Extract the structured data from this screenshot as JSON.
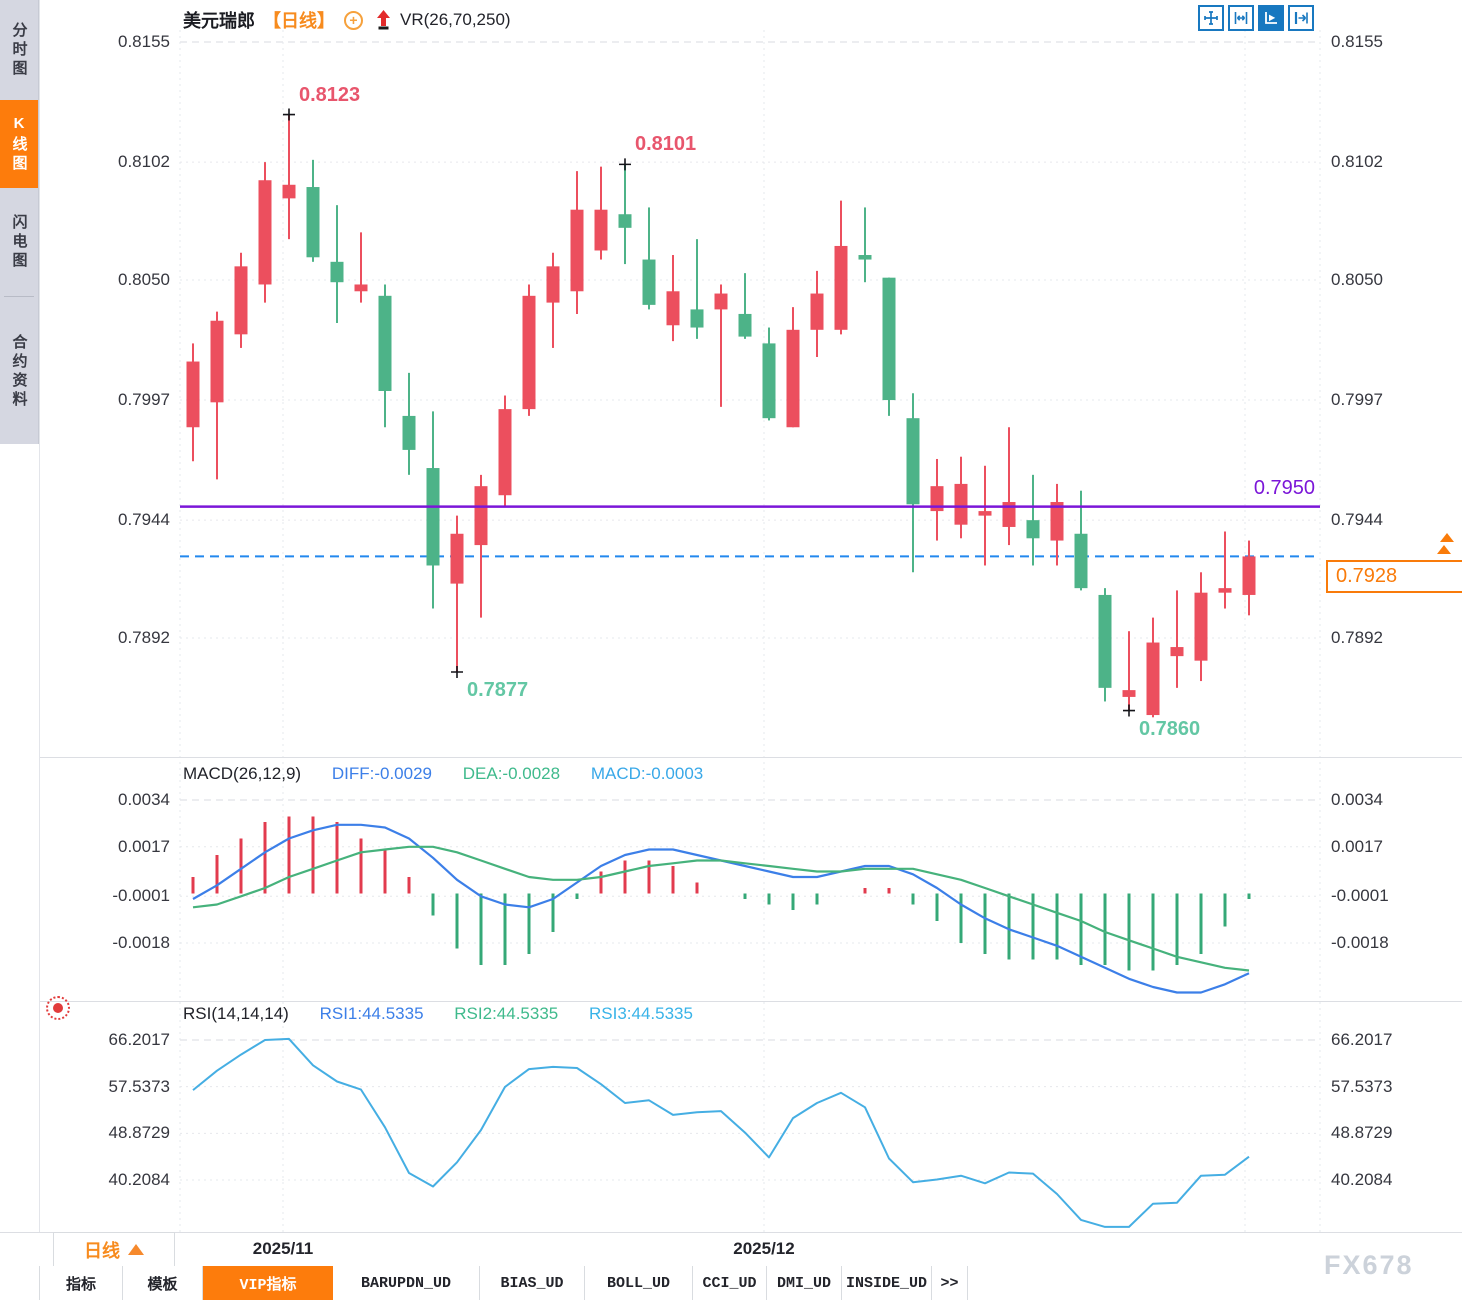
{
  "app": {
    "watermark": "FX678"
  },
  "colors": {
    "accent_orange": "#fd7c0c",
    "title_orange": "#f78b1e",
    "up": "#ec4f5e",
    "down": "#4db388",
    "macd_diff": "#3c7fe8",
    "macd_dea": "#46b27c",
    "macd_hist_up": "#e23b4e",
    "macd_hist_down": "#35a877",
    "rsi_line": "#45aee3",
    "level_line": "#7b16d8",
    "current_line": "#2288ee",
    "toolbar_blue": "#1878c0",
    "annotation_high": "#e8566d",
    "annotation_low": "#63c7a4",
    "grid": "#e6e8ec",
    "grid_major": "#d8dbe0",
    "separator": "#dcdee3"
  },
  "sidebar": {
    "items": [
      {
        "label": "分时图",
        "active": false
      },
      {
        "label": "K线图",
        "active": true
      },
      {
        "label": "闪电图",
        "active": false
      },
      {
        "label": "合约资料",
        "active": false
      }
    ]
  },
  "header": {
    "symbol": "美元瑞郎",
    "period_tag": "【日线】",
    "plus_icon": "+",
    "overlay_indicator": "VR(26,70,250)"
  },
  "toolbar": {
    "icons": [
      {
        "name": "pan-crosshair-icon",
        "active": false
      },
      {
        "name": "x-axis-scale-icon",
        "active": false
      },
      {
        "name": "auto-scroll-icon",
        "active": true
      },
      {
        "name": "shift-right-icon",
        "active": false
      }
    ]
  },
  "price_axis": {
    "left": [
      "0.8155",
      "0.8102",
      "0.8050",
      "0.7997",
      "0.7944",
      "0.7892"
    ],
    "right": [
      "0.8155",
      "0.8102",
      "0.8050",
      "0.7997",
      "0.7944",
      "0.7892"
    ]
  },
  "macd_panel": {
    "title": "MACD(26,12,9)",
    "diff_label": "DIFF:-0.0029",
    "dea_label": "DEA:-0.0028",
    "macd_label": "MACD:-0.0003",
    "axis": [
      "0.0034",
      "0.0017",
      "-0.0001",
      "-0.0018"
    ]
  },
  "rsi_panel": {
    "title": "RSI(14,14,14)",
    "rsi1_label": "RSI1:44.5335",
    "rsi2_label": "RSI2:44.5335",
    "rsi3_label": "RSI3:44.5335",
    "axis": [
      "66.2017",
      "57.5373",
      "48.8729",
      "40.2084"
    ]
  },
  "time_axis": {
    "ticks": [
      "2025/11",
      "2025/12"
    ],
    "period_button": {
      "label": "日线"
    }
  },
  "bottom_tabs": {
    "items": [
      {
        "label": "指标",
        "active": false
      },
      {
        "label": "模板",
        "active": false
      },
      {
        "label": "VIP指标",
        "active": true
      },
      {
        "label": "BARUPDN_UD",
        "active": false
      },
      {
        "label": "BIAS_UD",
        "active": false
      },
      {
        "label": "BOLL_UD",
        "active": false
      },
      {
        "label": "CCI_UD",
        "active": false
      },
      {
        "label": "DMI_UD",
        "active": false
      },
      {
        "label": "INSIDE_UD",
        "active": false
      },
      {
        "label": ">>",
        "active": false
      }
    ]
  },
  "levels": {
    "horizontal_line": {
      "label": "0.7950",
      "price": 0.795
    },
    "current_price": {
      "label": "0.7928",
      "price": 0.7928
    }
  },
  "chart_data": {
    "type": "candlestick",
    "symbol": "美元瑞郎",
    "timeframe": "日线",
    "legend_position": "top-left",
    "grid": true,
    "price_pane": {
      "ylim": [
        0.7839,
        0.8155
      ],
      "gridlines": [
        0.8155,
        0.8102,
        0.805,
        0.7997,
        0.7944,
        0.7892
      ]
    },
    "macd_pane": {
      "ylim": [
        -0.0039,
        0.0034
      ],
      "gridlines": [
        0.0034,
        0.0017,
        -0.0001,
        -0.0018
      ]
    },
    "rsi_pane": {
      "ylim": [
        30.5,
        66.5
      ],
      "gridlines": [
        66.2017,
        57.5373,
        48.8729,
        40.2084
      ]
    },
    "x_ticks": [
      "2025/11",
      "2025/12"
    ],
    "candles": {
      "open": [
        0.7985,
        0.7996,
        0.8026,
        0.8048,
        0.8086,
        0.8091,
        0.8058,
        0.8045,
        0.8043,
        0.799,
        0.7967,
        0.7916,
        0.7933,
        0.7955,
        0.7993,
        0.804,
        0.8045,
        0.8063,
        0.8079,
        0.8059,
        0.803,
        0.8037,
        0.8037,
        0.8035,
        0.8022,
        0.7985,
        0.8028,
        0.8028,
        0.8061,
        0.8051,
        0.7989,
        0.7948,
        0.7942,
        0.7946,
        0.7941,
        0.7944,
        0.7935,
        0.7938,
        0.7911,
        0.7866,
        0.7858,
        0.7884,
        0.7882,
        0.7912,
        0.7911
      ],
      "high": [
        0.8022,
        0.8036,
        0.8062,
        0.8102,
        0.8123,
        0.8103,
        0.8083,
        0.8071,
        0.8048,
        0.8009,
        0.7992,
        0.7946,
        0.7964,
        0.7999,
        0.8048,
        0.8062,
        0.8098,
        0.81,
        0.8101,
        0.8082,
        0.8061,
        0.8068,
        0.8048,
        0.8053,
        0.8029,
        0.8038,
        0.8054,
        0.8085,
        0.8082,
        0.8051,
        0.8,
        0.7971,
        0.7972,
        0.7968,
        0.7985,
        0.7964,
        0.796,
        0.7957,
        0.7914,
        0.7895,
        0.7901,
        0.7913,
        0.7921,
        0.7939,
        0.7935
      ],
      "low": [
        0.797,
        0.7962,
        0.802,
        0.804,
        0.8068,
        0.8058,
        0.8031,
        0.804,
        0.7985,
        0.7964,
        0.7905,
        0.7877,
        0.7901,
        0.795,
        0.799,
        0.802,
        0.8035,
        0.8059,
        0.8057,
        0.8037,
        0.8023,
        0.8024,
        0.7994,
        0.8024,
        0.7988,
        0.7985,
        0.8016,
        0.8026,
        0.8049,
        0.799,
        0.7921,
        0.7935,
        0.7936,
        0.7924,
        0.7933,
        0.7924,
        0.7924,
        0.7913,
        0.7864,
        0.786,
        0.7857,
        0.787,
        0.7873,
        0.7905,
        0.7902
      ],
      "close": [
        0.8014,
        0.8032,
        0.8056,
        0.8094,
        0.8092,
        0.806,
        0.8049,
        0.8048,
        0.8001,
        0.7975,
        0.7924,
        0.7938,
        0.7959,
        0.7993,
        0.8043,
        0.8056,
        0.8081,
        0.8081,
        0.8073,
        0.8039,
        0.8045,
        0.8029,
        0.8044,
        0.8025,
        0.7989,
        0.8028,
        0.8044,
        0.8065,
        0.8059,
        0.7997,
        0.7951,
        0.7959,
        0.796,
        0.7948,
        0.7952,
        0.7936,
        0.7952,
        0.7914,
        0.787,
        0.7869,
        0.789,
        0.7888,
        0.7912,
        0.7914,
        0.7928
      ]
    },
    "annotations": [
      {
        "label": "0.8123",
        "price": 0.8123,
        "index": 4,
        "placement": "above",
        "color": "#e8566d"
      },
      {
        "label": "0.8101",
        "price": 0.8101,
        "index": 18,
        "placement": "above",
        "color": "#e8566d"
      },
      {
        "label": "0.7877",
        "price": 0.7877,
        "index": 11,
        "placement": "below",
        "color": "#63c7a4"
      },
      {
        "label": "0.7860",
        "price": 0.786,
        "index": 39,
        "placement": "below",
        "color": "#63c7a4"
      }
    ],
    "macd": {
      "diff": [
        -0.0002,
        0.0003,
        0.0009,
        0.0015,
        0.002,
        0.0023,
        0.0025,
        0.0025,
        0.0024,
        0.002,
        0.0013,
        0.0005,
        -0.0001,
        -0.0004,
        -0.0005,
        -0.0002,
        0.0004,
        0.001,
        0.0014,
        0.0016,
        0.0016,
        0.0014,
        0.0012,
        0.001,
        0.0008,
        0.0006,
        0.0006,
        0.0008,
        0.001,
        0.001,
        0.0007,
        0.0002,
        -0.0004,
        -0.0009,
        -0.0013,
        -0.0016,
        -0.0019,
        -0.0023,
        -0.0027,
        -0.0031,
        -0.0034,
        -0.0036,
        -0.0036,
        -0.0033,
        -0.0029
      ],
      "dea": [
        -0.0005,
        -0.0004,
        -0.0001,
        0.0002,
        0.0006,
        0.0009,
        0.0012,
        0.0015,
        0.0016,
        0.0017,
        0.0017,
        0.0015,
        0.0012,
        0.0009,
        0.0006,
        0.0005,
        0.0005,
        0.0006,
        0.0008,
        0.001,
        0.0011,
        0.0012,
        0.0012,
        0.0011,
        0.001,
        0.0009,
        0.0008,
        0.0008,
        0.0009,
        0.0009,
        0.0009,
        0.0007,
        0.0005,
        0.0002,
        -0.0001,
        -0.0004,
        -0.0007,
        -0.001,
        -0.0014,
        -0.0017,
        -0.002,
        -0.0023,
        -0.0025,
        -0.0027,
        -0.0028
      ],
      "hist_rule": "2*(diff-dea)"
    },
    "rsi": [
      56.9,
      60.5,
      63.5,
      66.2,
      66.4,
      61.5,
      58.5,
      57.0,
      50.0,
      41.5,
      39.0,
      43.5,
      49.5,
      57.5,
      60.8,
      61.2,
      61.0,
      58.0,
      54.5,
      55.0,
      52.3,
      52.8,
      53.0,
      49.0,
      44.4,
      51.7,
      54.5,
      56.4,
      53.7,
      44.2,
      39.8,
      40.3,
      41.0,
      39.6,
      41.6,
      41.4,
      37.6,
      32.8,
      31.5,
      31.5,
      35.8,
      36.0,
      41.0,
      41.2,
      44.53
    ]
  }
}
